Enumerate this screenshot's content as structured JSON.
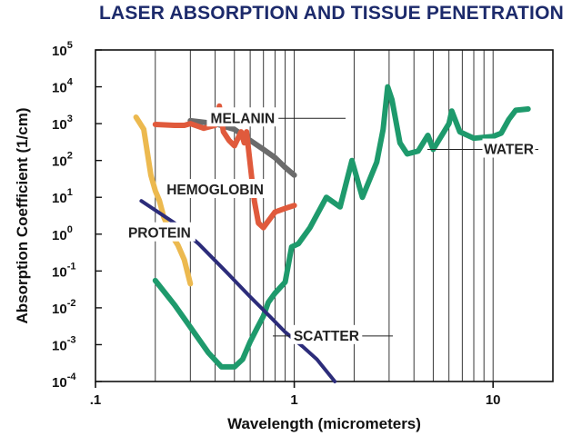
{
  "chart_data": {
    "type": "line",
    "title": "LASER ABSORPTION AND TISSUE PENETRATION",
    "xlabel": "Wavelength (micrometers)",
    "ylabel": "Absorption Coefficient (1/cm)",
    "xscale": "log",
    "yscale": "log",
    "xlim": [
      0.1,
      20
    ],
    "ylim": [
      0.0001,
      100000
    ],
    "grid": "vertical",
    "x_ticks": [
      {
        "value": 0.1,
        "label": ".1"
      },
      {
        "value": 1,
        "label": "1"
      },
      {
        "value": 10,
        "label": "10"
      }
    ],
    "y_ticks": [
      {
        "value": 100000,
        "base": "10",
        "exp": "5"
      },
      {
        "value": 10000,
        "base": "10",
        "exp": "4"
      },
      {
        "value": 1000,
        "base": "10",
        "exp": "3"
      },
      {
        "value": 100,
        "base": "10",
        "exp": "2"
      },
      {
        "value": 10,
        "base": "10",
        "exp": "1"
      },
      {
        "value": 1,
        "base": "10",
        "exp": "0"
      },
      {
        "value": 0.1,
        "base": "10",
        "exp": "-1"
      },
      {
        "value": 0.01,
        "base": "10",
        "exp": "-2"
      },
      {
        "value": 0.001,
        "base": "10",
        "exp": "-3"
      },
      {
        "value": 0.0001,
        "base": "10",
        "exp": "-4"
      }
    ],
    "series": [
      {
        "name": "WATER",
        "color": "#1e9a6c",
        "points": [
          [
            0.2,
            0.055
          ],
          [
            0.25,
            0.012
          ],
          [
            0.3,
            0.003
          ],
          [
            0.37,
            0.0006
          ],
          [
            0.43,
            0.00025
          ],
          [
            0.5,
            0.00025
          ],
          [
            0.55,
            0.0004
          ],
          [
            0.6,
            0.0012
          ],
          [
            0.65,
            0.0028
          ],
          [
            0.7,
            0.006
          ],
          [
            0.74,
            0.014
          ],
          [
            0.8,
            0.025
          ],
          [
            0.9,
            0.05
          ],
          [
            0.97,
            0.45
          ],
          [
            1.05,
            0.55
          ],
          [
            1.2,
            1.5
          ],
          [
            1.45,
            10
          ],
          [
            1.7,
            5.5
          ],
          [
            1.95,
            100
          ],
          [
            2.2,
            10
          ],
          [
            2.6,
            90
          ],
          [
            2.8,
            700
          ],
          [
            2.95,
            10000
          ],
          [
            3.1,
            4500
          ],
          [
            3.4,
            300
          ],
          [
            3.7,
            150
          ],
          [
            4.2,
            180
          ],
          [
            4.7,
            480
          ],
          [
            5.0,
            200
          ],
          [
            6.0,
            1000
          ],
          [
            6.2,
            2200
          ],
          [
            6.8,
            600
          ],
          [
            8,
            400
          ],
          [
            10,
            450
          ],
          [
            11,
            550
          ],
          [
            12,
            1300
          ],
          [
            13,
            2300
          ],
          [
            15,
            2500
          ]
        ]
      },
      {
        "name": "MELANIN",
        "color": "#6b6b6b",
        "points": [
          [
            0.3,
            1200
          ],
          [
            0.4,
            1000
          ],
          [
            0.5,
            700
          ],
          [
            0.6,
            350
          ],
          [
            0.7,
            200
          ],
          [
            0.8,
            120
          ],
          [
            0.9,
            65
          ],
          [
            1.0,
            40
          ]
        ]
      },
      {
        "name": "HEMOGLOBIN",
        "color": "#e05a3c",
        "points": [
          [
            0.2,
            950
          ],
          [
            0.25,
            900
          ],
          [
            0.28,
            900
          ],
          [
            0.3,
            1000
          ],
          [
            0.35,
            750
          ],
          [
            0.4,
            900
          ],
          [
            0.415,
            2000
          ],
          [
            0.42,
            3000
          ],
          [
            0.44,
            600
          ],
          [
            0.47,
            350
          ],
          [
            0.5,
            250
          ],
          [
            0.54,
            600
          ],
          [
            0.56,
            300
          ],
          [
            0.575,
            600
          ],
          [
            0.6,
            80
          ],
          [
            0.63,
            8
          ],
          [
            0.66,
            2
          ],
          [
            0.7,
            1.5
          ],
          [
            0.75,
            2.5
          ],
          [
            0.8,
            4
          ],
          [
            0.9,
            5
          ],
          [
            1.0,
            6
          ]
        ]
      },
      {
        "name": "PROTEIN",
        "color": "#ecb94f",
        "points": [
          [
            0.16,
            1500
          ],
          [
            0.175,
            700
          ],
          [
            0.19,
            40
          ],
          [
            0.2,
            15
          ],
          [
            0.21,
            8
          ],
          [
            0.22,
            3
          ],
          [
            0.24,
            1
          ],
          [
            0.26,
            0.5
          ],
          [
            0.28,
            0.2
          ],
          [
            0.3,
            0.045
          ]
        ]
      },
      {
        "name": "SCATTER",
        "color": "#2c2c7a",
        "points": [
          [
            0.17,
            8
          ],
          [
            0.25,
            2
          ],
          [
            0.33,
            0.55
          ],
          [
            0.45,
            0.1
          ],
          [
            0.6,
            0.02
          ],
          [
            0.75,
            0.006
          ],
          [
            0.9,
            0.0022
          ],
          [
            1.1,
            0.0009
          ],
          [
            1.3,
            0.0004
          ],
          [
            1.6,
            0.0001
          ]
        ]
      }
    ],
    "legend": "inline labels on curves"
  }
}
